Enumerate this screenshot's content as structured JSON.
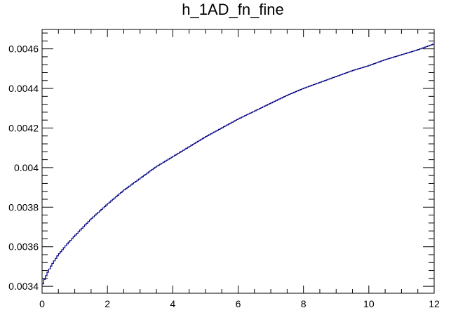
{
  "chart_data": {
    "type": "line",
    "title": "h_1AD_fn_fine",
    "xlabel": "",
    "ylabel": "",
    "xlim": [
      0,
      12
    ],
    "ylim": [
      0.003365,
      0.004698
    ],
    "x_ticks": [
      {
        "value": 0,
        "label": "0"
      },
      {
        "value": 2,
        "label": "2"
      },
      {
        "value": 4,
        "label": "4"
      },
      {
        "value": 6,
        "label": "6"
      },
      {
        "value": 8,
        "label": "8"
      },
      {
        "value": 10,
        "label": "10"
      },
      {
        "value": 12,
        "label": "12"
      }
    ],
    "y_ticks": [
      {
        "value": 0.0034,
        "label": "0.0034"
      },
      {
        "value": 0.0036,
        "label": "0.0036"
      },
      {
        "value": 0.0038,
        "label": "0.0038"
      },
      {
        "value": 0.004,
        "label": "0.004"
      },
      {
        "value": 0.0042,
        "label": "0.0042"
      },
      {
        "value": 0.0044,
        "label": "0.0044"
      },
      {
        "value": 0.0046,
        "label": "0.0046"
      }
    ],
    "grid": false,
    "series": [
      {
        "style": "histogram-step",
        "color": "#000080",
        "x": [
          0,
          0.05,
          0.1,
          0.2,
          0.3,
          0.5,
          0.75,
          1,
          1.5,
          2,
          2.5,
          3,
          3.5,
          4,
          4.5,
          5,
          5.5,
          6,
          6.5,
          7,
          7.5,
          8,
          8.5,
          9,
          9.5,
          10,
          10.5,
          11,
          11.5,
          12
        ],
        "values": [
          0.0034,
          0.003425,
          0.003445,
          0.00348,
          0.00351,
          0.00356,
          0.00361,
          0.003655,
          0.00374,
          0.003815,
          0.003885,
          0.003945,
          0.004005,
          0.004055,
          0.004105,
          0.004155,
          0.0042,
          0.004245,
          0.004285,
          0.004325,
          0.004365,
          0.0044,
          0.00443,
          0.00446,
          0.00449,
          0.004515,
          0.004545,
          0.00457,
          0.004595,
          0.004625
        ]
      }
    ]
  }
}
